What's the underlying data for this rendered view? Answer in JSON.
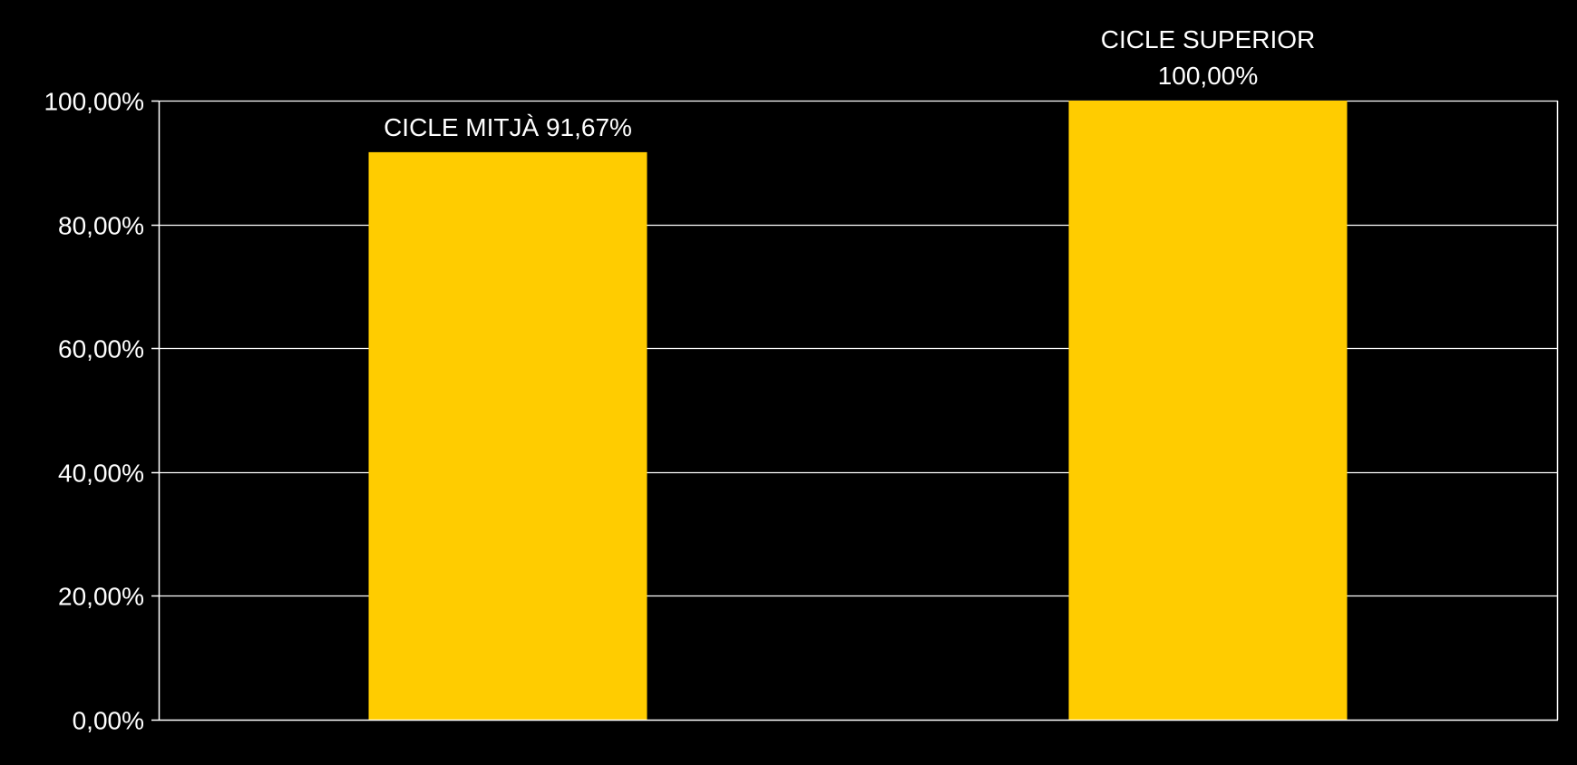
{
  "chart_data": {
    "type": "bar",
    "categories": [
      "CICLE MITJÀ",
      "CICLE SUPERIOR"
    ],
    "values": [
      91.67,
      100.0
    ],
    "value_format": "percent, comma decimal, two decimals",
    "data_labels": [
      [
        "CICLE MITJÀ 91,67%"
      ],
      [
        "CICLE SUPERIOR",
        "100,00%"
      ]
    ],
    "title": "",
    "xlabel": "",
    "ylabel": "",
    "ylim": [
      0,
      100
    ],
    "y_ticks": [
      0,
      20,
      40,
      60,
      80,
      100
    ],
    "y_tick_labels": [
      "0,00%",
      "20,00%",
      "40,00%",
      "60,00%",
      "80,00%",
      "100,00%"
    ],
    "grid": true,
    "legend": "none",
    "colors": {
      "background": "#000000",
      "bar": "#FFCC00",
      "grid": "#FFFFFF",
      "text": "#FFFFFF"
    }
  }
}
